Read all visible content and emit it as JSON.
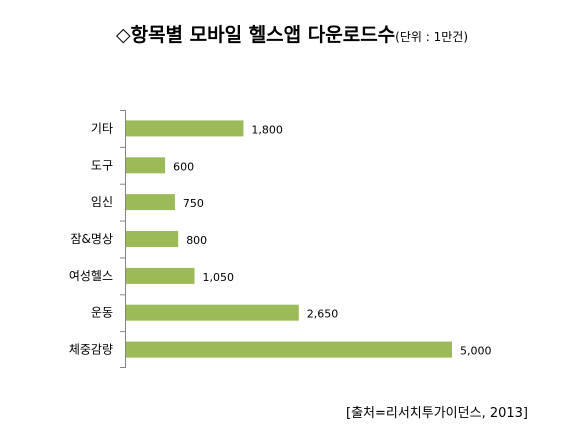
{
  "chart_data": {
    "type": "bar",
    "orientation": "horizontal",
    "title": "◇항목별 모바일 헬스앱 다운로드수",
    "unit": "(단위 : 1만건)",
    "categories": [
      "기타",
      "도구",
      "임신",
      "잠&명상",
      "여성헬스",
      "운동",
      "체중감량"
    ],
    "values": [
      1800,
      600,
      750,
      800,
      1050,
      2650,
      5000
    ],
    "value_labels": [
      "1,800",
      "600",
      "750",
      "800",
      "1,050",
      "2,650",
      "5,000"
    ],
    "xlim": [
      0,
      5000
    ],
    "grid": false,
    "legend": "none",
    "bar_color": "#9bbb59",
    "axis_color": "#868686"
  },
  "source": "[출처=리서치투가이던스, 2013]"
}
